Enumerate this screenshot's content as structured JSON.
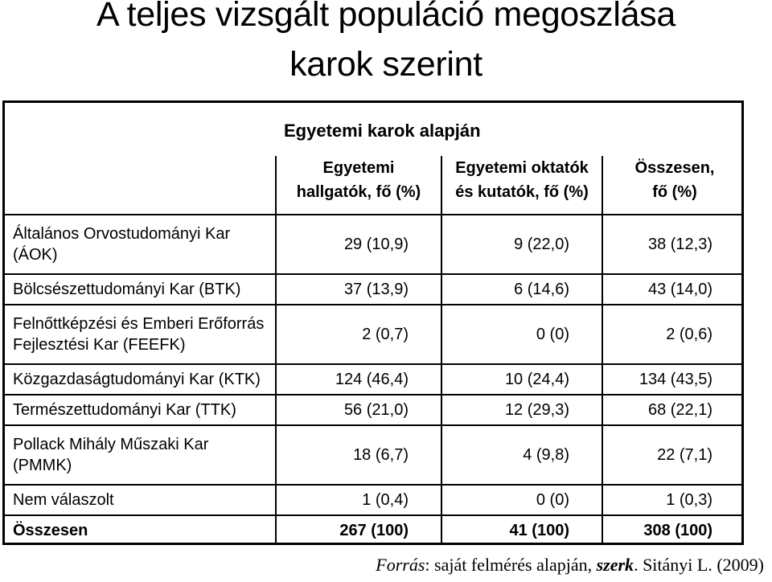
{
  "slide": {
    "title_line1": "A teljes vizsgált populáció megoszlása",
    "title_line2": "karok szerint"
  },
  "table": {
    "group_header": "Egyetemi karok alapján",
    "columns": [
      {
        "line1": "Egyetemi",
        "line2": "hallgatók, fő (%)"
      },
      {
        "line1": "Egyetemi oktatók",
        "line2": "és kutatók, fő (%)"
      },
      {
        "line1": "Összesen,",
        "line2": "fő (%)"
      }
    ],
    "rows": [
      {
        "line1": "Általános Orvostudományi Kar",
        "line2": "(ÁOK)",
        "values": [
          "29 (10,9)",
          "9 (22,0)",
          "38 (12,3)"
        ]
      },
      {
        "line1": "Bölcsészettudományi Kar (BTK)",
        "line2": "",
        "values": [
          "37 (13,9)",
          "6 (14,6)",
          "43 (14,0)"
        ]
      },
      {
        "line1": "Felnőttképzési és Emberi Erőforrás",
        "line2": "Fejlesztési Kar (FEEFK)",
        "values": [
          "2 (0,7)",
          "0 (0)",
          "2 (0,6)"
        ]
      },
      {
        "line1": "Közgazdaságtudományi Kar (KTK)",
        "line2": "",
        "values": [
          "124 (46,4)",
          "10 (24,4)",
          "134 (43,5)"
        ]
      },
      {
        "line1": "Természettudományi Kar (TTK)",
        "line2": "",
        "values": [
          "56 (21,0)",
          "12 (29,3)",
          "68 (22,1)"
        ]
      },
      {
        "line1": "Pollack Mihály Műszaki Kar",
        "line2": "(PMMK)",
        "values": [
          "18 (6,7)",
          "4 (9,8)",
          "22 (7,1)"
        ]
      },
      {
        "line1": "Nem válaszolt",
        "line2": "",
        "values": [
          "1 (0,4)",
          "0 (0)",
          "1 (0,3)"
        ]
      }
    ],
    "total": {
      "label": "Összesen",
      "values": [
        "267 (100)",
        "41 (100)",
        "308 (100)"
      ]
    }
  },
  "source": {
    "label": "Forrás",
    "text1": ": saját felmérés alapján, ",
    "editor_label": "szerk",
    "text2": ". Sitányi L. (2009)"
  }
}
